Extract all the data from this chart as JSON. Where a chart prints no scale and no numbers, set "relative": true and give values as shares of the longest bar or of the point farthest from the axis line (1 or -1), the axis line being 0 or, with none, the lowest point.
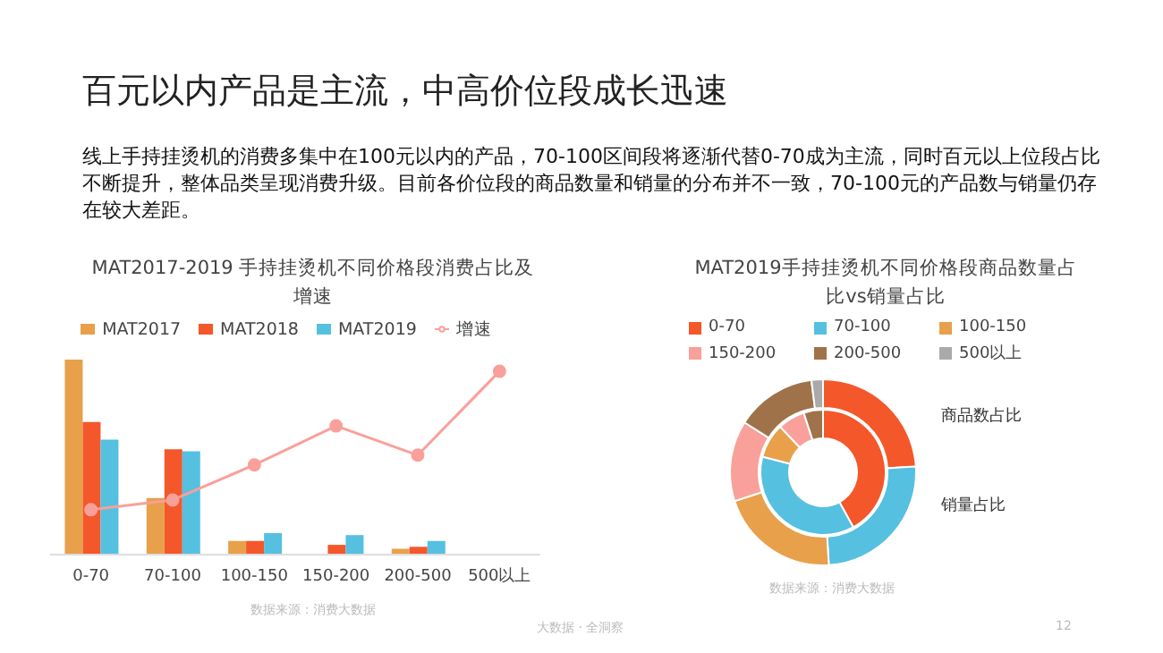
{
  "chart_data": [
    {
      "type": "other",
      "title": "百元以内产品是主流，中高价位段成长迅速",
      "subtitle": "线上手持挂烫机的消费多集中在100元以内的产品，70-100区间段将逐渐代替0-70成为主流，同时百元以上位段占比不断提升，整体品类呈现消费升级。目前各价位段的商品数量和销量的分布并不一致，70-100元的产品数与销量仍存在较大差距。",
      "annotations": [
        "大数据 · 全洞察",
        "12"
      ]
    },
    {
      "type": "bar",
      "title": "MAT2017-2019 手持挂烫机不同价格段消费占比及增速",
      "categories": [
        "0-70",
        "70-100",
        "100-150",
        "150-200",
        "200-500",
        "500以上"
      ],
      "relative": true,
      "legend": "top",
      "tick_labels": "x",
      "annotations": [
        "数据来源：消费大数据"
      ],
      "series": [
        {
          "name": "MAT2017",
          "color": "#e8a04a",
          "values": [
            1,
            0.29,
            0.07,
            null,
            0.03,
            null
          ]
        },
        {
          "name": "MAT2018",
          "color": "#f4572a",
          "values": [
            0.68,
            0.54,
            0.07,
            0.05,
            0.04,
            null
          ]
        },
        {
          "name": "MAT2019",
          "color": "#55c0e0",
          "values": [
            0.59,
            0.53,
            0.11,
            0.1,
            0.07,
            null
          ]
        },
        {
          "name": "增速",
          "type": "line",
          "color": "#f9a09a",
          "marker": "circle",
          "values": [
            0.23,
            0.28,
            0.46,
            0.66,
            0.51,
            0.94
          ]
        }
      ]
    },
    {
      "type": "donut",
      "title": "MAT2019手持挂烫机不同价格段商品数量占比vs销量占比",
      "categories": [
        "0-70",
        "70-100",
        "100-150",
        "150-200",
        "200-500",
        "500以上"
      ],
      "colors": [
        "#f4572a",
        "#55c0e0",
        "#e8a04a",
        "#f9a09a",
        "#a0724a",
        "#aaaaaa"
      ],
      "legend": "top",
      "annotations": [
        "数据来源：消费大数据"
      ],
      "series": [
        {
          "name": "商品数占比",
          "values": [
            24,
            25,
            21,
            14,
            14,
            2
          ]
        },
        {
          "name": "销量占比",
          "values": [
            42,
            37,
            9,
            7,
            5,
            0
          ]
        }
      ]
    }
  ]
}
